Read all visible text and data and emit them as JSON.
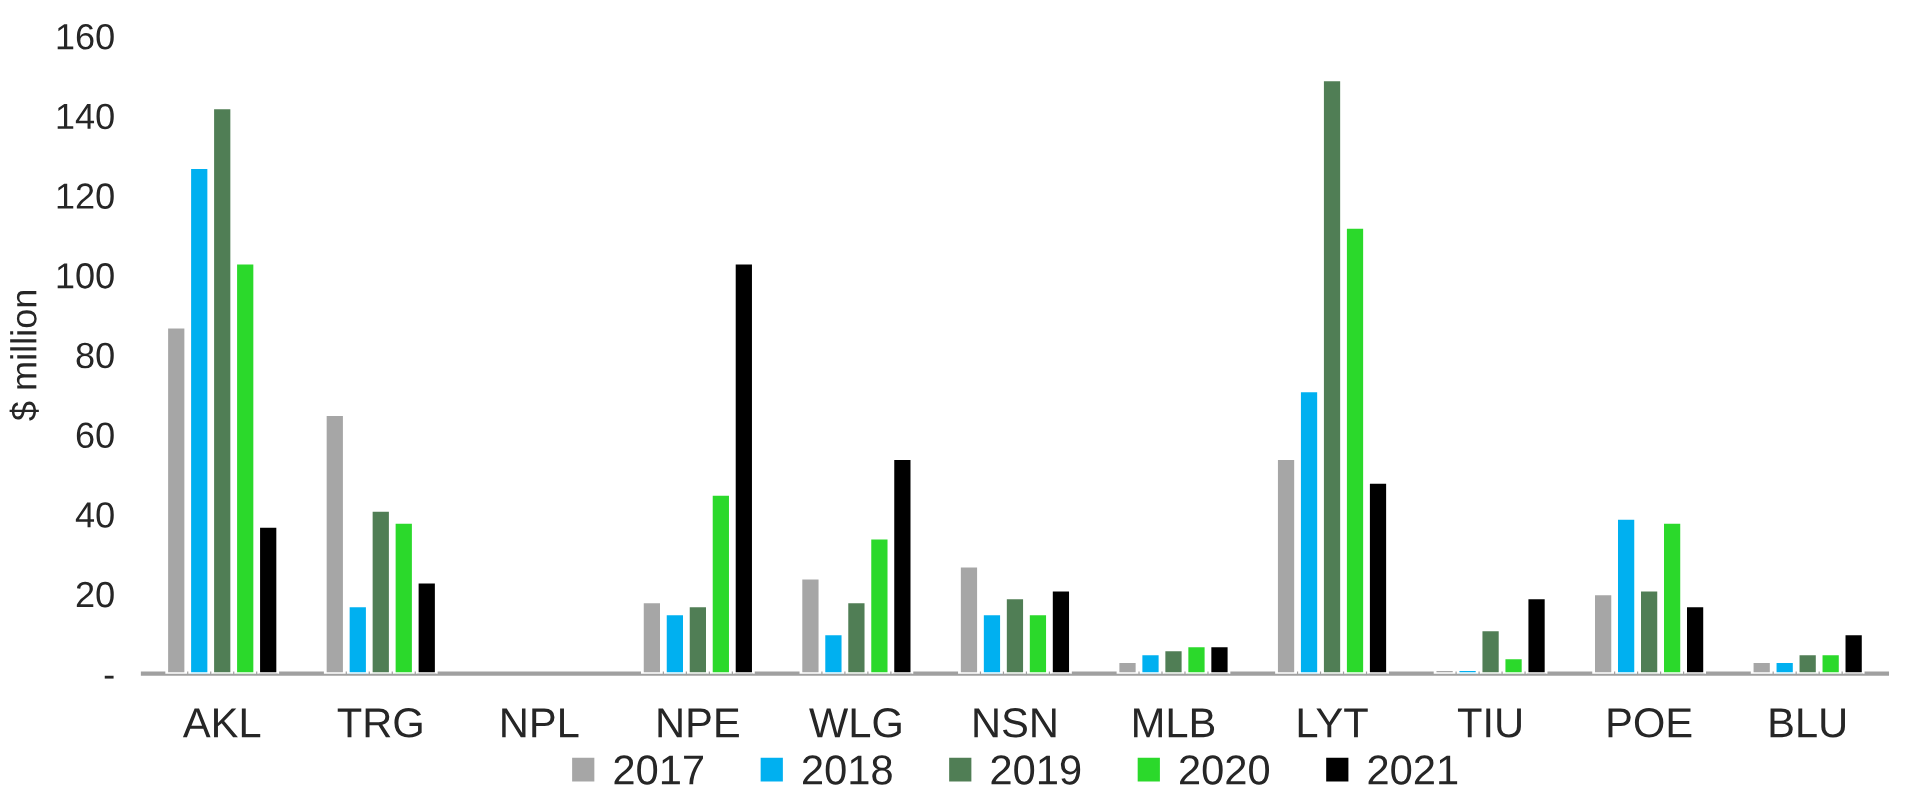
{
  "chart_data": {
    "type": "bar",
    "ylabel": "$ million",
    "categories": [
      "AKL",
      "TRG",
      "NPL",
      "NPE",
      "WLG",
      "NSN",
      "MLB",
      "LYT",
      "TIU",
      "POE",
      "BLU"
    ],
    "series": [
      {
        "name": "2017",
        "color": "#a6a6a6",
        "values": [
          87,
          65,
          null,
          18,
          24,
          27,
          3,
          54,
          1,
          20,
          3
        ]
      },
      {
        "name": "2018",
        "color": "#00b0f0",
        "values": [
          127,
          17,
          null,
          15,
          10,
          15,
          5,
          71,
          1,
          39,
          3
        ]
      },
      {
        "name": "2019",
        "color": "#507e55",
        "values": [
          142,
          41,
          null,
          17,
          18,
          19,
          6,
          149,
          11,
          21,
          5
        ]
      },
      {
        "name": "2020",
        "color": "#2bd92b",
        "values": [
          103,
          38,
          null,
          45,
          34,
          15,
          7,
          112,
          4,
          38,
          5
        ]
      },
      {
        "name": "2021",
        "color": "#000000",
        "values": [
          37,
          23,
          null,
          103,
          54,
          21,
          7,
          48,
          19,
          17,
          10
        ]
      }
    ],
    "ylim": [
      0,
      160
    ],
    "yticks": [
      {
        "value": 0,
        "label": "-"
      },
      20,
      40,
      60,
      80,
      100,
      120,
      140,
      160
    ],
    "grid": false,
    "legend": "bottom"
  }
}
